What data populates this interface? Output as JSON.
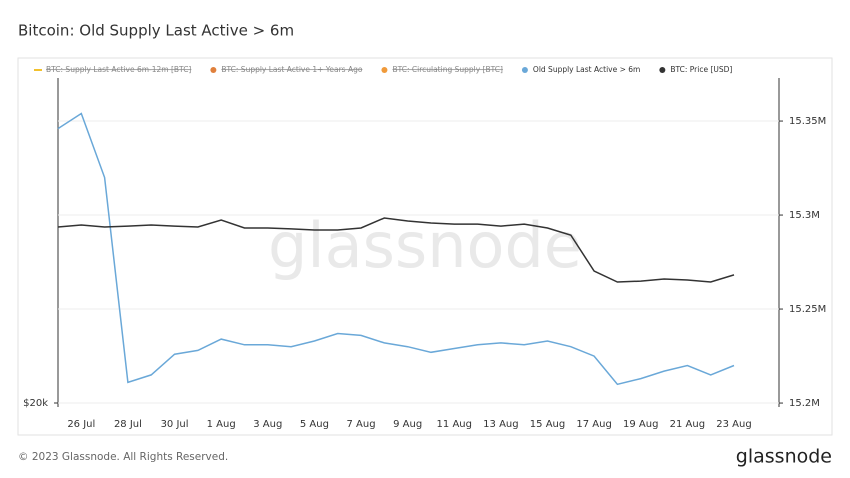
{
  "chart_data": {
    "type": "line",
    "title": "Bitcoin: Old Supply Last Active > 6m",
    "watermark": "glassnode",
    "footer": "© 2023 Glassnode. All Rights Reserved.",
    "brand": "glassnode",
    "categories": [
      null,
      "26 Jul",
      null,
      "28 Jul",
      null,
      "30 Jul",
      null,
      "1 Aug",
      null,
      "3 Aug",
      null,
      "5 Aug",
      null,
      "7 Aug",
      null,
      "9 Aug",
      null,
      "11 Aug",
      null,
      "13 Aug",
      null,
      "15 Aug",
      null,
      "17 Aug",
      null,
      "19 Aug",
      null,
      "21 Aug",
      null,
      "23 Aug"
    ],
    "inactive_series": [
      {
        "name": "BTC: Supply Last Active 6m-12m [BTC]",
        "color": "#f2c12e"
      },
      {
        "name": "BTC: Supply Last Active 1+ Years Ago",
        "color": "#e0803c"
      },
      {
        "name": "BTC: Circulating Supply [BTC]",
        "color": "#f09a3a"
      }
    ],
    "series": [
      {
        "name": "Old Supply Last Active > 6m",
        "color": "#6aa8d8",
        "axis": "y2",
        "values": [
          15346000,
          15354000,
          15320000,
          15211000,
          15215000,
          15226000,
          15228000,
          15234000,
          15231000,
          15231000,
          15230000,
          15233000,
          15237000,
          15236000,
          15232000,
          15230000,
          15227000,
          15229000,
          15231000,
          15232000,
          15231000,
          15233000,
          15230000,
          15225000,
          15210000,
          15213000,
          15217000,
          15220000,
          15215000,
          15220000
        ]
      },
      {
        "name": "BTC: Price [USD]",
        "color": "#333333",
        "axis": "y",
        "values": [
          29320,
          29450,
          29320,
          29380,
          29450,
          29380,
          29320,
          29770,
          29260,
          29260,
          29200,
          29130,
          29130,
          29260,
          29900,
          29710,
          29580,
          29510,
          29510,
          29380,
          29510,
          29260,
          28810,
          26650,
          26020,
          26070,
          26190,
          26130,
          26020,
          26420
        ]
      }
    ],
    "ylog": true,
    "ylim": [
      19827,
      40540
    ],
    "yticks": [
      {
        "value": 20000,
        "label": "$20k"
      }
    ],
    "y2lim": [
      15197900,
      15372900
    ],
    "y2ticks": [
      {
        "value": 15200000,
        "label": "15.2M"
      },
      {
        "value": 15250000,
        "label": "15.25M"
      },
      {
        "value": 15300000,
        "label": "15.3M"
      },
      {
        "value": 15350000,
        "label": "15.35M"
      }
    ],
    "grid": true
  }
}
